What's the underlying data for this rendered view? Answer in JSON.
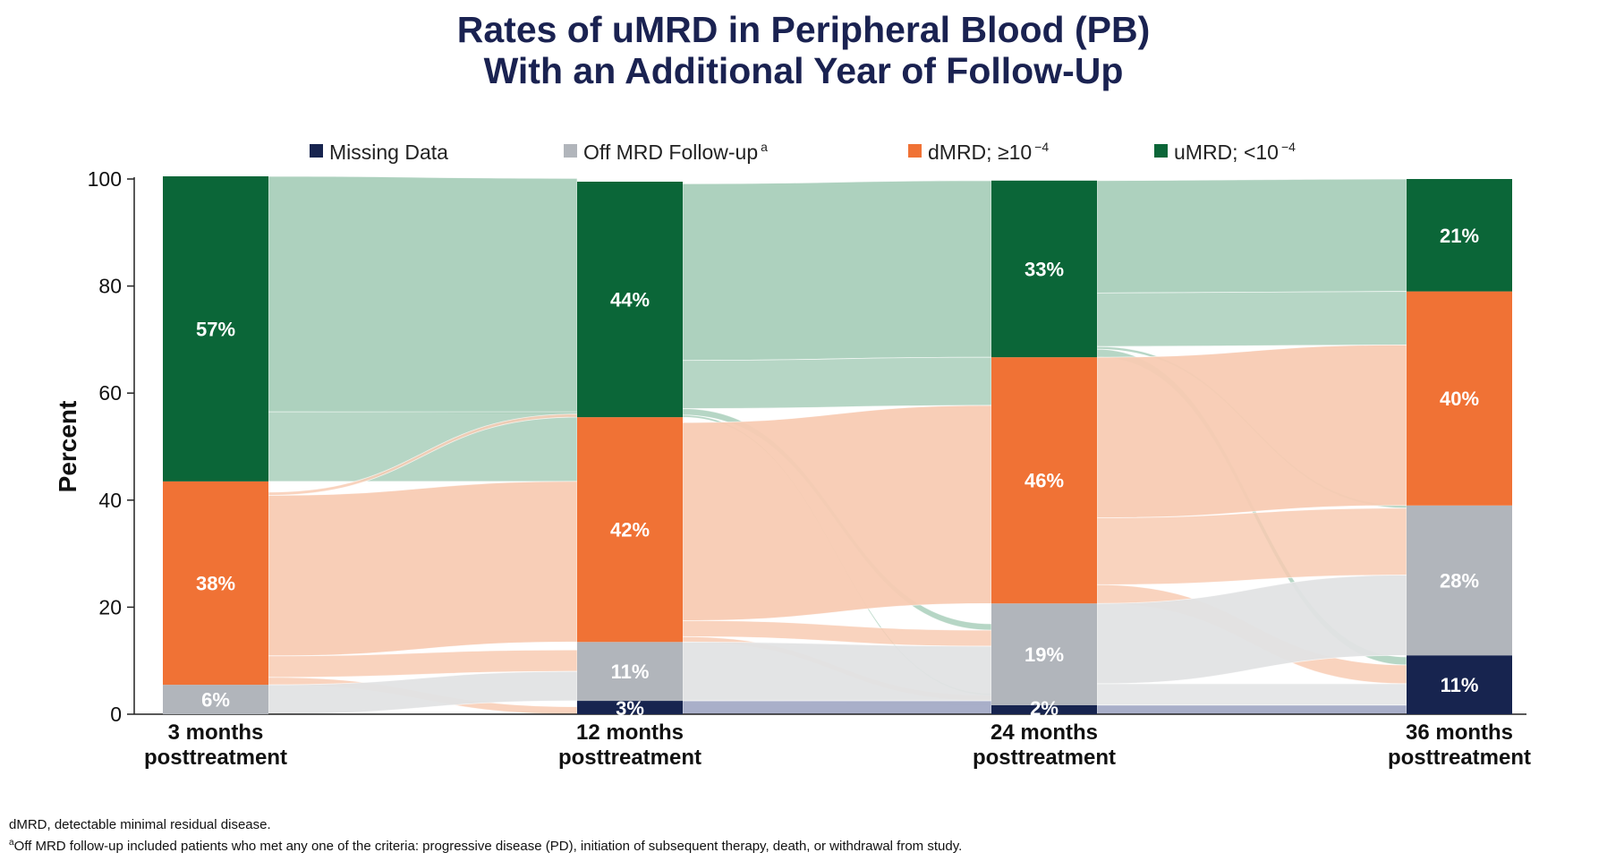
{
  "chart_data": {
    "type": "sankey-stacked-bar",
    "title_lines": [
      "Rates of uMRD in Peripheral Blood (PB)",
      "With an Additional Year of Follow-Up"
    ],
    "ylabel": "Percent",
    "ylim": [
      0,
      100
    ],
    "yticks": [
      0,
      20,
      40,
      60,
      80,
      100
    ],
    "timepoints": [
      {
        "line1": "3 months",
        "line2": "posttreatment"
      },
      {
        "line1": "12 months",
        "line2": "posttreatment"
      },
      {
        "line1": "24 months",
        "line2": "posttreatment"
      },
      {
        "line1": "36 months",
        "line2": "posttreatment"
      }
    ],
    "legend": [
      {
        "key": "missing",
        "label": "Missing Data",
        "sup": "",
        "color": "#17244f"
      },
      {
        "key": "off",
        "label": "Off MRD Follow-up",
        "sup": "a",
        "color": "#b1b5bb"
      },
      {
        "key": "dmrd",
        "label": "dMRD; ≥10",
        "sup": "−4",
        "color": "#f07235"
      },
      {
        "key": "umrd",
        "label": "uMRD; <10",
        "sup": "−4",
        "color": "#0b6638"
      }
    ],
    "series": [
      {
        "key": "missing",
        "values": [
          0,
          2.5,
          1.7,
          11
        ]
      },
      {
        "key": "off",
        "values": [
          5.5,
          11,
          19,
          28
        ]
      },
      {
        "key": "dmrd",
        "values": [
          38,
          42,
          46,
          40
        ]
      },
      {
        "key": "umrd",
        "values": [
          57,
          44,
          33,
          21
        ]
      }
    ],
    "bar_labels": [
      [
        "",
        "6%",
        "38%",
        "57%"
      ],
      [
        "3%",
        "11%",
        "42%",
        "44%"
      ],
      [
        "2%",
        "19%",
        "46%",
        "33%"
      ],
      [
        "11%",
        "28%",
        "40%",
        "21%"
      ]
    ],
    "flow_colors": {
      "umrd": "#a9cfbb",
      "dmrd": "#f8cbb3",
      "off": "#e2e3e4",
      "missing": "#a4abc6"
    },
    "flows": [
      [
        {
          "from": "umrd",
          "to": "umrd",
          "value": 44
        },
        {
          "from": "umrd",
          "to": "dmrd",
          "value": 13
        },
        {
          "from": "dmrd",
          "to": "umrd",
          "value": 0.6
        },
        {
          "from": "dmrd",
          "to": "dmrd",
          "value": 30
        },
        {
          "from": "dmrd",
          "to": "off",
          "value": 4
        },
        {
          "from": "dmrd",
          "to": "missing",
          "value": 1.4
        },
        {
          "from": "off",
          "to": "off",
          "value": 5.5
        }
      ],
      [
        {
          "from": "umrd",
          "to": "umrd",
          "value": 33
        },
        {
          "from": "umrd",
          "to": "dmrd",
          "value": 9
        },
        {
          "from": "umrd",
          "to": "off",
          "value": 1.2
        },
        {
          "from": "umrd",
          "to": "missing",
          "value": 0.4
        },
        {
          "from": "dmrd",
          "to": "dmrd",
          "value": 37
        },
        {
          "from": "dmrd",
          "to": "off",
          "value": 3
        },
        {
          "from": "dmrd",
          "to": "missing",
          "value": 1
        },
        {
          "from": "off",
          "to": "off",
          "value": 11
        },
        {
          "from": "missing",
          "to": "missing",
          "value": 2.5
        }
      ],
      [
        {
          "from": "umrd",
          "to": "umrd",
          "value": 21
        },
        {
          "from": "umrd",
          "to": "dmrd",
          "value": 10
        },
        {
          "from": "umrd",
          "to": "off",
          "value": 0.5
        },
        {
          "from": "umrd",
          "to": "missing",
          "value": 1.5
        },
        {
          "from": "dmrd",
          "to": "dmrd",
          "value": 30
        },
        {
          "from": "dmrd",
          "to": "off",
          "value": 12.5
        },
        {
          "from": "dmrd",
          "to": "missing",
          "value": 3.5
        },
        {
          "from": "off",
          "to": "off",
          "value": 15
        },
        {
          "from": "off",
          "to": "missing",
          "value": 4
        },
        {
          "from": "missing",
          "to": "missing",
          "value": 1.7
        }
      ]
    ]
  },
  "footnotes": {
    "line1": "dMRD, detectable minimal residual disease.",
    "line2_sup": "a",
    "line2": "Off MRD follow-up included patients who met any one of the criteria: progressive disease (PD), initiation of subsequent therapy, death, or withdrawal from study."
  }
}
